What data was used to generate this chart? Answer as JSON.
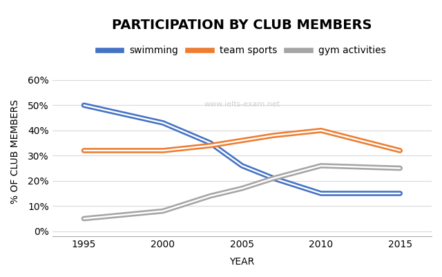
{
  "title": "PARTICIPATION BY CLUB MEMBERS",
  "xlabel": "YEAR",
  "ylabel": "% OF CLUB MEMBERS",
  "watermark": "www.ielts-exam.net",
  "years": [
    1995,
    2000,
    2003,
    2005,
    2007,
    2010,
    2015
  ],
  "swimming": [
    50,
    43,
    35,
    26,
    21,
    15,
    15
  ],
  "team_sports": [
    32,
    32,
    34,
    36,
    38,
    40,
    32
  ],
  "gym_activities": [
    5,
    8,
    14,
    17,
    21,
    26,
    25
  ],
  "swimming_color": "#4472C4",
  "team_sports_color": "#ED7D31",
  "gym_activities_color": "#A5A5A5",
  "line_width": 2.5,
  "legend_labels": [
    "swimming",
    "team sports",
    "gym activities"
  ],
  "yticks": [
    0,
    10,
    20,
    30,
    40,
    50,
    60
  ],
  "ytick_labels": [
    "0%",
    "10%",
    "20%",
    "30%",
    "40%",
    "50%",
    "60%"
  ],
  "xticks": [
    1995,
    2000,
    2005,
    2010,
    2015
  ],
  "ylim": [
    -2,
    65
  ],
  "xlim": [
    1993,
    2017
  ],
  "title_fontsize": 14,
  "axis_label_fontsize": 10,
  "legend_fontsize": 10,
  "tick_fontsize": 10,
  "background_color": "#FFFFFF",
  "grid_color": "#D9D9D9"
}
